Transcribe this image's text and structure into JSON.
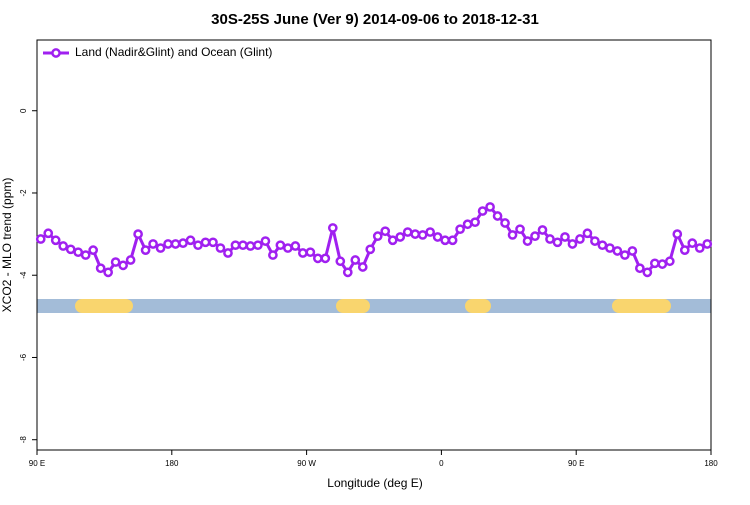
{
  "chart_data": {
    "type": "line",
    "title": "30S-25S June (Ver 9)   2014-09-06 to 2018-12-31",
    "x_label": "Longitude (deg E)",
    "y_label": "XCO2 - MLO trend (ppm)",
    "x": [
      92.5,
      97.5,
      102.5,
      107.5,
      112.5,
      117.5,
      122.5,
      127.5,
      132.5,
      137.5,
      142.5,
      147.5,
      152.5,
      157.5,
      162.5,
      167.5,
      172.5,
      177.5,
      182.5,
      187.5,
      192.5,
      197.5,
      202.5,
      207.5,
      212.5,
      217.5,
      222.5,
      227.5,
      232.5,
      237.5,
      242.5,
      247.5,
      252.5,
      257.5,
      262.5,
      267.5,
      272.5,
      277.5,
      282.5,
      287.5,
      292.5,
      297.5,
      302.5,
      307.5,
      312.5,
      317.5,
      322.5,
      327.5,
      332.5,
      337.5,
      342.5,
      347.5,
      352.5,
      357.5,
      362.5,
      367.5,
      372.5,
      377.5,
      382.5,
      387.5,
      392.5,
      397.5,
      402.5,
      407.5,
      412.5,
      417.5,
      422.5,
      427.5,
      432.5,
      437.5,
      442.5,
      447.5,
      452.5,
      457.5,
      462.5,
      467.5,
      472.5,
      477.5,
      482.5,
      487.5,
      492.5,
      497.5,
      502.5,
      507.5,
      512.5,
      517.5,
      522.5,
      527.5,
      532.5,
      537.5
    ],
    "series": [
      {
        "name": "Land (Nadir&Glint) and Ocean (Glint)",
        "color": "#a020f0",
        "values": [
          -3.12,
          -2.98,
          -3.15,
          -3.29,
          -3.37,
          -3.44,
          -3.51,
          -3.39,
          -3.83,
          -3.93,
          -3.68,
          -3.76,
          -3.63,
          -3.0,
          -3.39,
          -3.24,
          -3.34,
          -3.24,
          -3.24,
          -3.22,
          -3.15,
          -3.27,
          -3.2,
          -3.2,
          -3.34,
          -3.46,
          -3.27,
          -3.27,
          -3.29,
          -3.27,
          -3.17,
          -3.51,
          -3.27,
          -3.34,
          -3.29,
          -3.46,
          -3.44,
          -3.59,
          -3.59,
          -2.85,
          -3.66,
          -3.93,
          -3.63,
          -3.8,
          -3.37,
          -3.05,
          -2.93,
          -3.15,
          -3.07,
          -2.95,
          -3.0,
          -3.02,
          -2.95,
          -3.07,
          -3.15,
          -3.15,
          -2.88,
          -2.76,
          -2.71,
          -2.44,
          -2.34,
          -2.56,
          -2.73,
          -3.02,
          -2.88,
          -3.17,
          -3.05,
          -2.9,
          -3.12,
          -3.2,
          -3.07,
          -3.24,
          -3.12,
          -2.98,
          -3.17,
          -3.27,
          -3.34,
          -3.41,
          -3.51,
          -3.41,
          -3.83,
          -3.93,
          -3.71,
          -3.73,
          -3.66,
          -3.0,
          -3.39,
          -3.22,
          -3.34,
          -3.24
        ]
      }
    ],
    "xlim": [
      90,
      540
    ],
    "xticks": [
      {
        "value": 90,
        "label": "90 E"
      },
      180,
      {
        "value": 270,
        "label": "90 W"
      },
      {
        "value": 360,
        "label": "0"
      },
      {
        "value": 450,
        "label": "90 E"
      },
      {
        "value": 540,
        "label": "180"
      }
    ],
    "ylim": [
      -8.25,
      1.72
    ],
    "yticks": [
      0,
      -2,
      -4,
      -6,
      -8
    ],
    "legend": "top-left"
  }
}
